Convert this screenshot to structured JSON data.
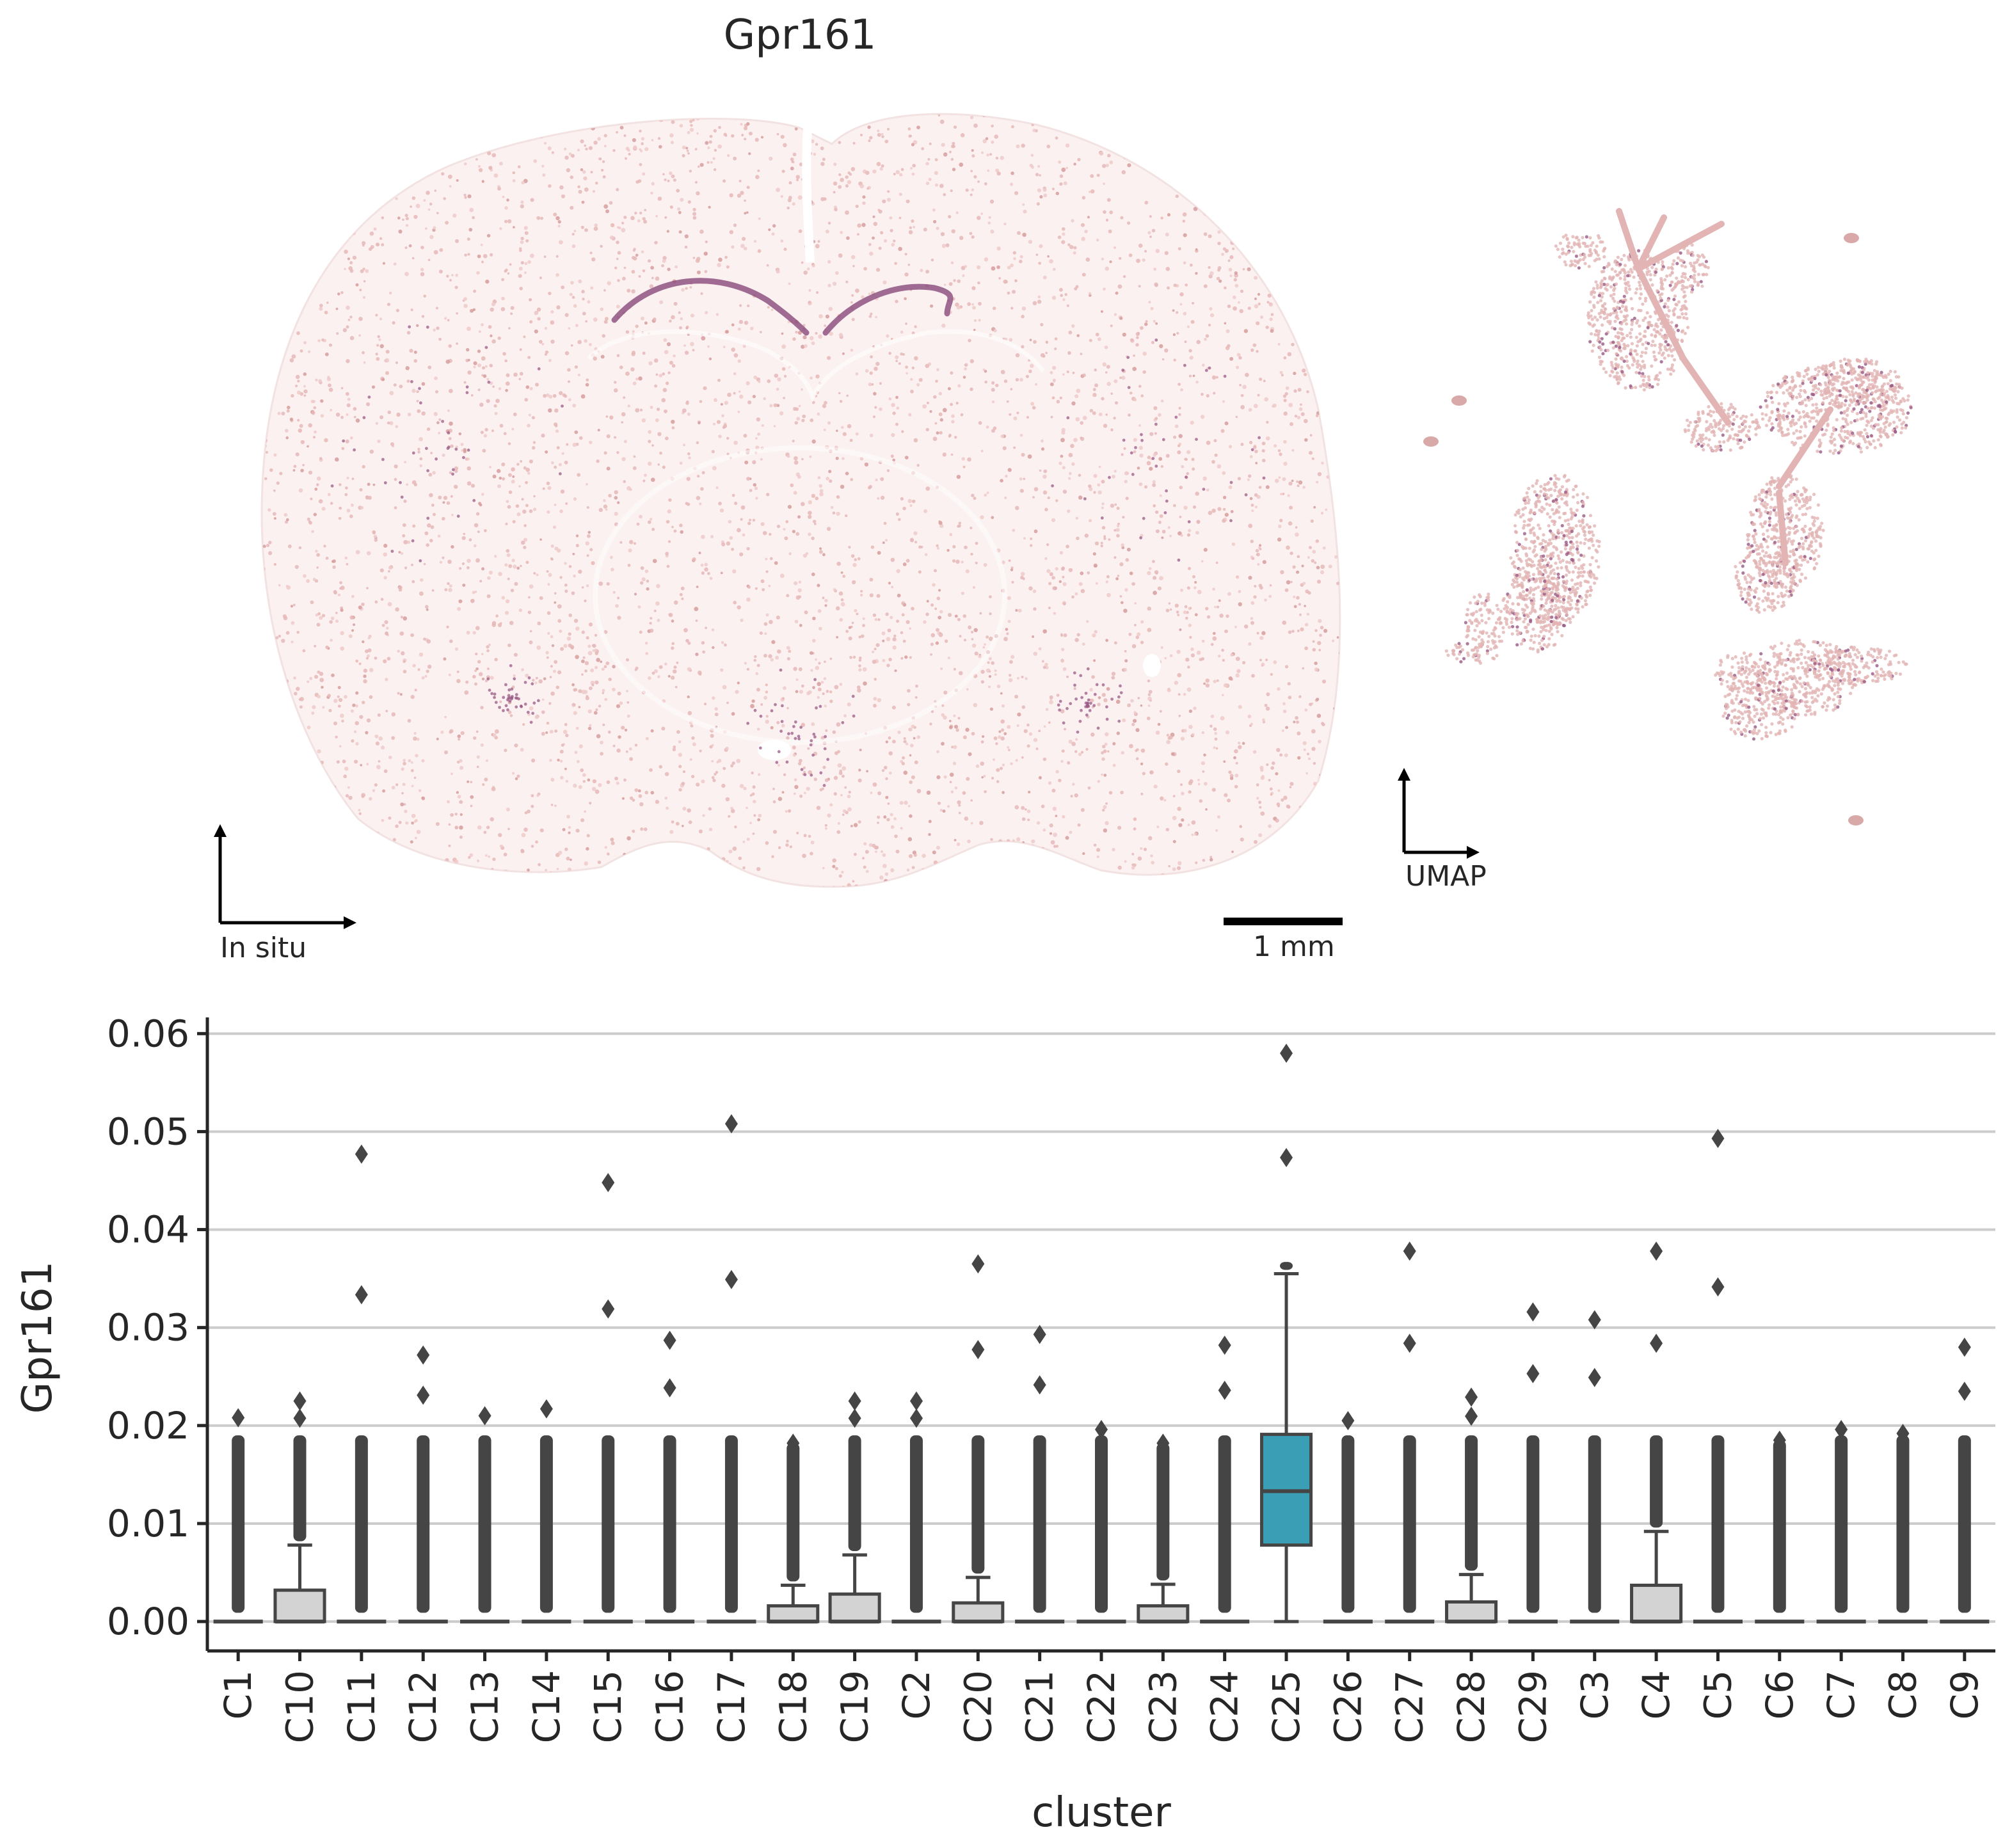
{
  "figure": {
    "title": "Gpr161",
    "insitu_label": "In situ",
    "umap_label": "UMAP",
    "scalebar_label": "1 mm"
  },
  "colors": {
    "expression_low": "#f4dcdc",
    "expression_mid": "#e3b3b3",
    "expression_high": "#6e2b63",
    "box_default": "#d3d3d3",
    "box_highlight": "#3a9fb4",
    "box_edge": "#454545",
    "grid": "#cccccc"
  },
  "chart_data": {
    "type": "box",
    "xlabel": "cluster",
    "ylabel": "Gpr161",
    "ylim": [
      -0.003,
      0.061
    ],
    "yticks": [
      "0.00",
      "0.01",
      "0.02",
      "0.03",
      "0.04",
      "0.05",
      "0.06"
    ],
    "grid": "horizontal",
    "highlight": "C25",
    "boxes": [
      {
        "cluster": "C1",
        "q1": 0,
        "median": 0,
        "q3": 0,
        "whisker_high": 0,
        "max_outlier": 0.0208
      },
      {
        "cluster": "C10",
        "q1": 0,
        "median": 0,
        "q3": 0.0032,
        "whisker_high": 0.0078,
        "max_outlier": 0.0225
      },
      {
        "cluster": "C11",
        "q1": 0,
        "median": 0,
        "q3": 0,
        "whisker_high": 0,
        "max_outlier": 0.0477
      },
      {
        "cluster": "C12",
        "q1": 0,
        "median": 0,
        "q3": 0,
        "whisker_high": 0,
        "max_outlier": 0.0272
      },
      {
        "cluster": "C13",
        "q1": 0,
        "median": 0,
        "q3": 0,
        "whisker_high": 0,
        "max_outlier": 0.021
      },
      {
        "cluster": "C14",
        "q1": 0,
        "median": 0,
        "q3": 0,
        "whisker_high": 0,
        "max_outlier": 0.0217
      },
      {
        "cluster": "C15",
        "q1": 0,
        "median": 0,
        "q3": 0,
        "whisker_high": 0,
        "max_outlier": 0.0448
      },
      {
        "cluster": "C16",
        "q1": 0,
        "median": 0,
        "q3": 0,
        "whisker_high": 0,
        "max_outlier": 0.0287
      },
      {
        "cluster": "C17",
        "q1": 0,
        "median": 0,
        "q3": 0,
        "whisker_high": 0,
        "max_outlier": 0.0508
      },
      {
        "cluster": "C18",
        "q1": 0,
        "median": 0,
        "q3": 0.0016,
        "whisker_high": 0.0037,
        "max_outlier": 0.0182
      },
      {
        "cluster": "C19",
        "q1": 0,
        "median": 0,
        "q3": 0.0028,
        "whisker_high": 0.0068,
        "max_outlier": 0.0225
      },
      {
        "cluster": "C2",
        "q1": 0,
        "median": 0,
        "q3": 0,
        "whisker_high": 0,
        "max_outlier": 0.0225
      },
      {
        "cluster": "C20",
        "q1": 0,
        "median": 0,
        "q3": 0.0019,
        "whisker_high": 0.0045,
        "max_outlier": 0.0365
      },
      {
        "cluster": "C21",
        "q1": 0,
        "median": 0,
        "q3": 0,
        "whisker_high": 0,
        "max_outlier": 0.0293
      },
      {
        "cluster": "C22",
        "q1": 0,
        "median": 0,
        "q3": 0,
        "whisker_high": 0,
        "max_outlier": 0.0196
      },
      {
        "cluster": "C23",
        "q1": 0,
        "median": 0,
        "q3": 0.0016,
        "whisker_high": 0.0038,
        "max_outlier": 0.0182
      },
      {
        "cluster": "C24",
        "q1": 0,
        "median": 0,
        "q3": 0,
        "whisker_high": 0,
        "max_outlier": 0.0282
      },
      {
        "cluster": "C25",
        "q1": 0.0078,
        "median": 0.0133,
        "q3": 0.0191,
        "whisker_high": 0.0355,
        "max_outlier": 0.058
      },
      {
        "cluster": "C26",
        "q1": 0,
        "median": 0,
        "q3": 0,
        "whisker_high": 0,
        "max_outlier": 0.0205
      },
      {
        "cluster": "C27",
        "q1": 0,
        "median": 0,
        "q3": 0,
        "whisker_high": 0,
        "max_outlier": 0.0378
      },
      {
        "cluster": "C28",
        "q1": 0,
        "median": 0,
        "q3": 0.002,
        "whisker_high": 0.0048,
        "max_outlier": 0.0229
      },
      {
        "cluster": "C29",
        "q1": 0,
        "median": 0,
        "q3": 0,
        "whisker_high": 0,
        "max_outlier": 0.0316
      },
      {
        "cluster": "C3",
        "q1": 0,
        "median": 0,
        "q3": 0,
        "whisker_high": 0,
        "max_outlier": 0.0308
      },
      {
        "cluster": "C4",
        "q1": 0,
        "median": 0,
        "q3": 0.0037,
        "whisker_high": 0.0092,
        "max_outlier": 0.0378
      },
      {
        "cluster": "C5",
        "q1": 0,
        "median": 0,
        "q3": 0,
        "whisker_high": 0,
        "max_outlier": 0.0493
      },
      {
        "cluster": "C6",
        "q1": 0,
        "median": 0,
        "q3": 0,
        "whisker_high": 0,
        "max_outlier": 0.0185
      },
      {
        "cluster": "C7",
        "q1": 0,
        "median": 0,
        "q3": 0,
        "whisker_high": 0,
        "max_outlier": 0.0196
      },
      {
        "cluster": "C8",
        "q1": 0,
        "median": 0,
        "q3": 0,
        "whisker_high": 0,
        "max_outlier": 0.0192
      },
      {
        "cluster": "C9",
        "q1": 0,
        "median": 0,
        "q3": 0,
        "whisker_high": 0,
        "max_outlier": 0.028
      }
    ]
  }
}
